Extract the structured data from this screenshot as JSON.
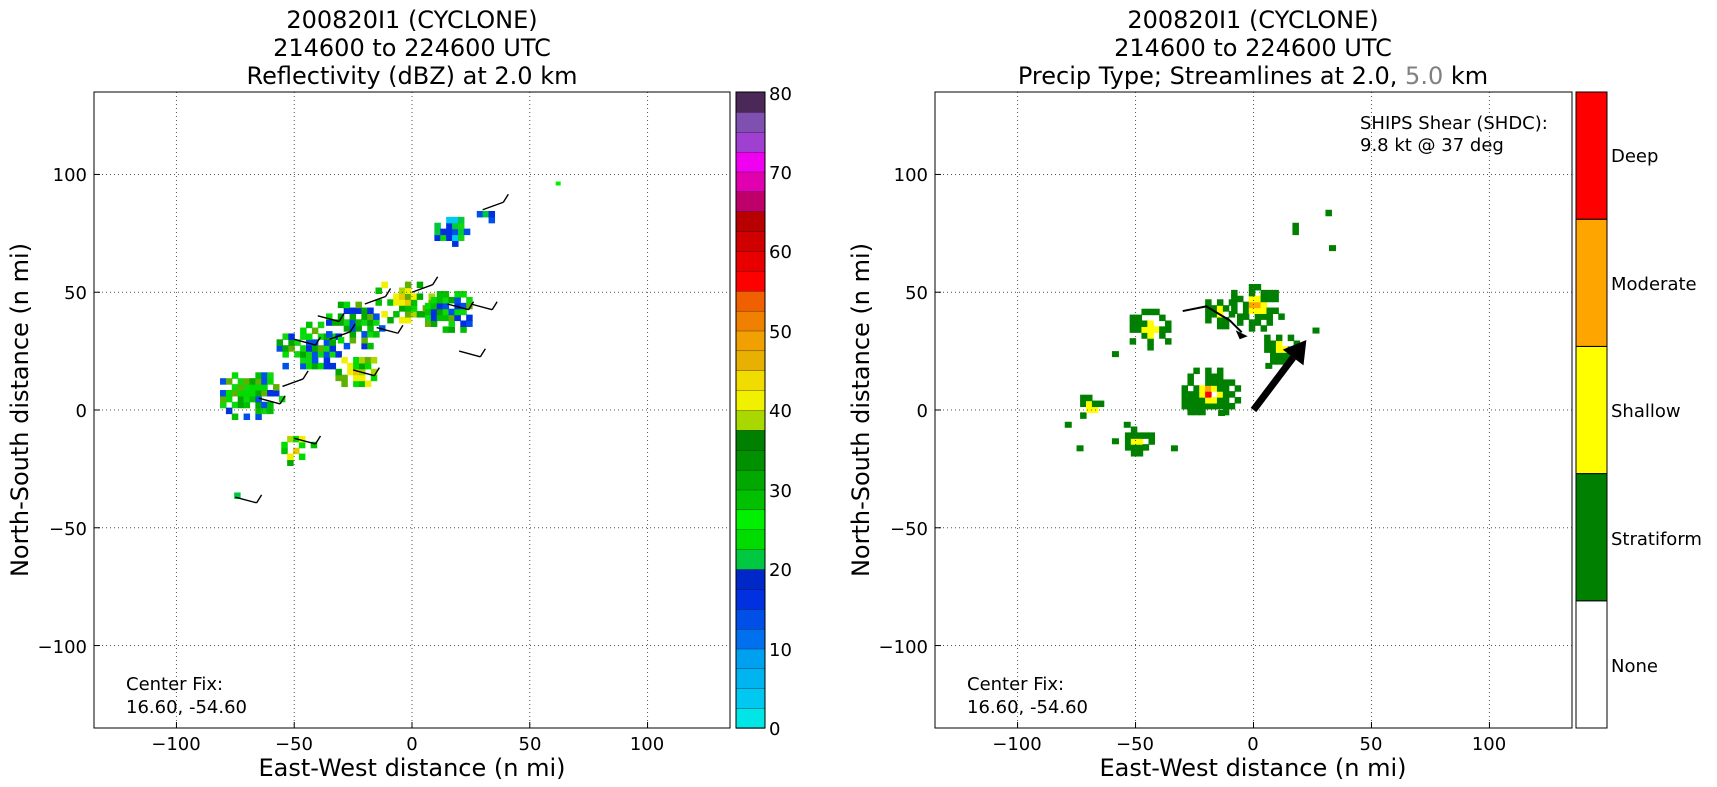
{
  "chart_data": [
    {
      "type": "heatmap",
      "title": [
        "200820I1 (CYCLONE)",
        "214600 to 224600 UTC",
        "Reflectivity (dBZ) at 2.0 km"
      ],
      "xlabel": "East-West distance (n mi)",
      "ylabel": "North-South distance (n mi)",
      "xlim": [
        -135,
        135
      ],
      "ylim": [
        -135,
        135
      ],
      "xticks": [
        "−100",
        "−50",
        "0",
        "50",
        "100"
      ],
      "yticks": [
        "100",
        "50",
        "0",
        "−50",
        "−100"
      ],
      "grid": true,
      "annotation": [
        "Center Fix:",
        "16.60, -54.60"
      ],
      "colorbar": {
        "min": 0,
        "max": 80,
        "step": 2.5,
        "ticks": [
          "0",
          "10",
          "20",
          "30",
          "40",
          "50",
          "60",
          "70",
          "80"
        ],
        "colors": [
          "#00e5e5",
          "#00c8f0",
          "#00b4f0",
          "#00a0f0",
          "#0090ee",
          "#0070ee",
          "#0050e8",
          "#0030e0",
          "#0028c8",
          "#087a7a",
          "#00c840",
          "#00dc00",
          "#00f000",
          "#10d810",
          "#00c000",
          "#00a800",
          "#009000",
          "#008000",
          "#60b000",
          "#a8d800",
          "#f0f000",
          "#f0dc00",
          "#e8c800",
          "#e8b000",
          "#f0a000",
          "#f08000",
          "#f06000",
          "#ff4000",
          "#ff0000",
          "#e80000",
          "#d00000",
          "#c00000",
          "#b80000",
          "#c0006a",
          "#e000b0",
          "#f000f0",
          "#d820e0",
          "#a040d0",
          "#8050b0",
          "#4a2858",
          "#000000"
        ]
      },
      "data_description_units": "n mi",
      "echo_clusters": [
        {
          "x": -70,
          "y": 5,
          "r": 14,
          "level": "moderate"
        },
        {
          "x": -45,
          "y": 25,
          "r": 15,
          "level": "moderate"
        },
        {
          "x": -25,
          "y": 35,
          "r": 14,
          "level": "moderate"
        },
        {
          "x": -5,
          "y": 45,
          "r": 13,
          "level": "strong"
        },
        {
          "x": 15,
          "y": 40,
          "r": 12,
          "level": "moderate"
        },
        {
          "x": -25,
          "y": 15,
          "r": 10,
          "level": "strong"
        },
        {
          "x": -50,
          "y": -18,
          "r": 8,
          "level": "strong"
        },
        {
          "x": 15,
          "y": 75,
          "r": 8,
          "level": "weak"
        },
        {
          "x": 30,
          "y": 82,
          "r": 5,
          "level": "weak"
        },
        {
          "x": -75,
          "y": -37,
          "r": 3,
          "level": "weak"
        }
      ],
      "wind_barbs": [
        {
          "x": -20,
          "y": 45
        },
        {
          "x": -40,
          "y": 40
        },
        {
          "x": -15,
          "y": 35
        },
        {
          "x": 0,
          "y": 50
        },
        {
          "x": 15,
          "y": 45
        },
        {
          "x": 25,
          "y": 45
        },
        {
          "x": -35,
          "y": 30
        },
        {
          "x": -50,
          "y": 30
        },
        {
          "x": -25,
          "y": 17
        },
        {
          "x": -55,
          "y": 10
        },
        {
          "x": -65,
          "y": 5
        },
        {
          "x": -50,
          "y": -12
        },
        {
          "x": 30,
          "y": 85
        },
        {
          "x": 20,
          "y": 25
        },
        {
          "x": -75,
          "y": -37
        }
      ]
    },
    {
      "type": "heatmap",
      "title": [
        "200820I1 (CYCLONE)",
        "214600 to 224600 UTC"
      ],
      "title3_parts": [
        "Precip Type; Streamlines at 2.0, ",
        "5.0",
        " km"
      ],
      "xlabel": "East-West distance (n mi)",
      "ylabel": "North-South distance (n mi)",
      "xlim": [
        -135,
        135
      ],
      "ylim": [
        -135,
        135
      ],
      "xticks": [
        "−100",
        "−50",
        "0",
        "50",
        "100"
      ],
      "yticks": [
        "100",
        "50",
        "0",
        "−50",
        "−100"
      ],
      "grid": true,
      "annotation": [
        "Center Fix:",
        "16.60, -54.60"
      ],
      "shear_text": [
        "SHIPS Shear (SHDC):",
        "9.8 kt @ 37 deg"
      ],
      "shear": {
        "speed_kt": 9.8,
        "direction_deg": 37
      },
      "categories": [
        "None",
        "Stratiform",
        "Shallow",
        "Moderate",
        "Deep"
      ],
      "category_colors": [
        "#ffffff",
        "#008000",
        "#ffff00",
        "#ffa500",
        "#ff0000"
      ],
      "precip_clusters": [
        {
          "x": -45,
          "y": 33,
          "r": 10,
          "inner": "shallow"
        },
        {
          "x": -15,
          "y": 40,
          "r": 8,
          "inner": "shallow"
        },
        {
          "x": 0,
          "y": 43,
          "r": 12,
          "inner": "moderate"
        },
        {
          "x": -20,
          "y": 6,
          "r": 13,
          "inner": "deep"
        },
        {
          "x": -50,
          "y": -15,
          "r": 7,
          "inner": "shallow"
        },
        {
          "x": -70,
          "y": 0,
          "r": 6,
          "inner": "shallow"
        },
        {
          "x": 10,
          "y": 25,
          "r": 8,
          "inner": "shallow"
        },
        {
          "x": 17,
          "y": 75,
          "r": 3,
          "inner": "none"
        },
        {
          "x": 30,
          "y": 82,
          "r": 2,
          "inner": "none"
        }
      ],
      "streamline": [
        [
          -30,
          42
        ],
        [
          -20,
          44
        ],
        [
          -10,
          38
        ],
        [
          -5,
          33
        ]
      ]
    }
  ]
}
